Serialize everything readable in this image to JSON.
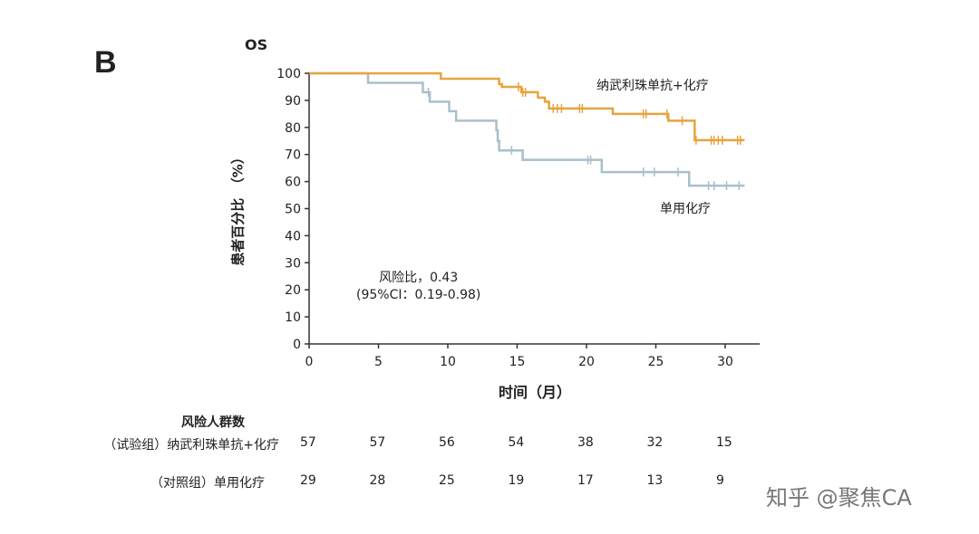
{
  "panel_label": "B",
  "chart_data": {
    "type": "line",
    "subtype": "kaplan-meier",
    "title": "OS",
    "xlabel": "时间（月）",
    "ylabel": "患者百分比　（%）",
    "xlim": [
      0,
      31.5
    ],
    "ylim": [
      0,
      100
    ],
    "xticks": [
      0,
      5,
      10,
      15,
      20,
      25,
      30
    ],
    "yticks": [
      0,
      10,
      20,
      30,
      40,
      50,
      60,
      70,
      80,
      90,
      100
    ],
    "grid": false,
    "series": [
      {
        "name": "纳武利珠单抗+化疗",
        "color": "#E8A33D",
        "steps": [
          [
            0,
            100
          ],
          [
            9.5,
            98
          ],
          [
            13.7,
            96
          ],
          [
            13.9,
            95
          ],
          [
            15.3,
            93
          ],
          [
            16.5,
            91
          ],
          [
            17.0,
            89.5
          ],
          [
            17.3,
            87
          ],
          [
            21.9,
            85
          ],
          [
            25.9,
            82.5
          ],
          [
            27.8,
            75.3
          ],
          [
            31.4,
            75.3
          ]
        ],
        "censored": [
          15.1,
          15.4,
          15.6,
          17.6,
          17.9,
          18.2,
          19.5,
          19.7,
          24.1,
          24.3,
          25.8,
          26.9,
          27.9,
          29.0,
          29.2,
          29.5,
          29.8,
          30.9,
          31.1
        ]
      },
      {
        "name": "单用化疗",
        "color": "#A9BFCB",
        "steps": [
          [
            0,
            100
          ],
          [
            4.25,
            96.5
          ],
          [
            8.2,
            93
          ],
          [
            8.7,
            89.5
          ],
          [
            10.1,
            86
          ],
          [
            10.6,
            82.5
          ],
          [
            13.5,
            79
          ],
          [
            13.6,
            75
          ],
          [
            13.7,
            71.5
          ],
          [
            15.4,
            68
          ],
          [
            21.1,
            63.5
          ],
          [
            27.4,
            58.5
          ],
          [
            31.4,
            58.5
          ]
        ],
        "censored": [
          8.6,
          14.6,
          20.1,
          20.3,
          24.1,
          24.9,
          26.6,
          28.8,
          29.2,
          30.1,
          31.0
        ]
      }
    ],
    "annotation": [
      "风险比，0.43",
      "(95%CI：0.19-0.98)"
    ]
  },
  "risk_table": {
    "title": "风险人群数",
    "rows": [
      {
        "label": "（试验组）纳武利珠单抗+化疗",
        "values": [
          "57",
          "57",
          "56",
          "54",
          "38",
          "32",
          "15"
        ]
      },
      {
        "label": "（对照组）单用化疗",
        "values": [
          "29",
          "28",
          "25",
          "19",
          "17",
          "13",
          "9"
        ]
      }
    ]
  },
  "watermark": "知乎 @聚焦CA"
}
